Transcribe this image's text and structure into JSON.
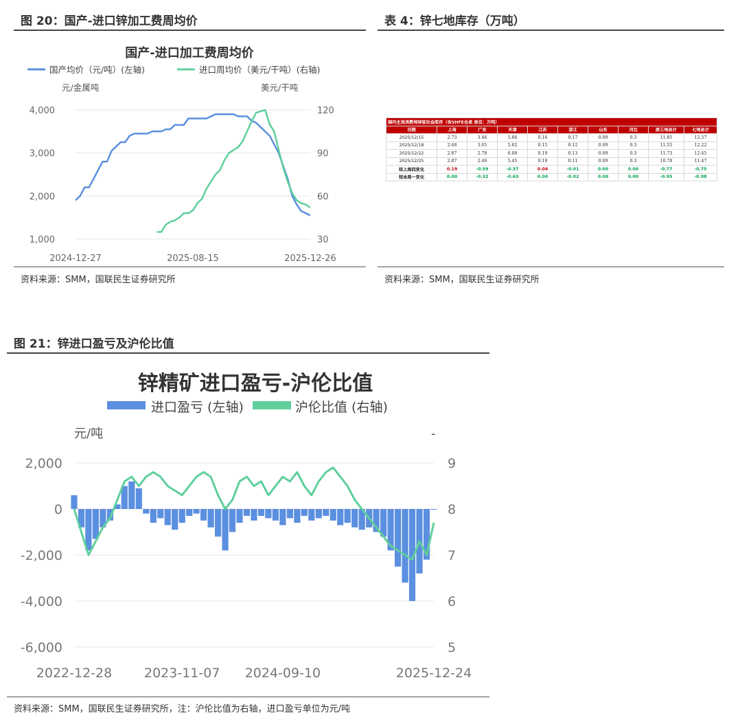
{
  "fig20": {
    "heading": "图 20：国产-进口锌加工费周均价",
    "source": "资料来源：SMM，国联民生证券研究所"
  },
  "tab4": {
    "heading": "表 4：锌七地库存（万吨）",
    "source": "资料来源：SMM，国联民生证券研究所",
    "caption": "国内主流消费地锌锭社会库存（含SHFE仓单 单位：万吨）",
    "columns": [
      "日期",
      "上海",
      "广东",
      "天津",
      "江苏",
      "浙江",
      "山东",
      "河北",
      "原三地总计",
      "七地总计"
    ],
    "rows": [
      [
        "2025/12/15",
        "2.73",
        "3.46",
        "5.66",
        "0.16",
        "0.17",
        "0.09",
        "0.3",
        "11.85",
        "12.57"
      ],
      [
        "2025/12/18",
        "2.68",
        "3.05",
        "5.82",
        "0.15",
        "0.12",
        "0.09",
        "0.3",
        "11.55",
        "12.22"
      ],
      [
        "2025/12/22",
        "2.87",
        "2.78",
        "6.08",
        "0.19",
        "0.13",
        "0.09",
        "0.3",
        "11.73",
        "12.45"
      ],
      [
        "2025/12/25",
        "2.87",
        "2.46",
        "5.45",
        "0.19",
        "0.11",
        "0.09",
        "0.3",
        "10.78",
        "11.47"
      ]
    ],
    "change_rows": [
      [
        "较上周四变化",
        "0.19",
        "-0.59",
        "-0.37",
        "0.04",
        "-0.01",
        "0.00",
        "0.00",
        "-0.77",
        "-0.75"
      ],
      [
        "较本周一变化",
        "0.00",
        "-0.32",
        "-0.63",
        "0.00",
        "-0.02",
        "0.00",
        "0.00",
        "-0.95",
        "-0.98"
      ]
    ]
  },
  "fig21": {
    "heading": "图 21：锌进口盈亏及沪伦比值",
    "source": "资料来源：SMM，国联民生证券研究所，注：沪伦比值为右轴，进口盈亏单位为元/吨"
  },
  "chart_data": [
    {
      "type": "line",
      "title": "国产-进口加工费周均价",
      "left_unit": "元/金属吨",
      "right_unit": "美元/干吨",
      "x_ticks": [
        "2024-12-27",
        "2025-08-15",
        "2025-12-26"
      ],
      "y_left_ticks": [
        "1,000",
        "2,000",
        "3,000",
        "4,000"
      ],
      "y_right_ticks": [
        "30",
        "60",
        "90",
        "120"
      ],
      "ylim_left": [
        1000,
        4000
      ],
      "ylim_right": [
        30,
        120
      ],
      "grid": true,
      "legend": "top",
      "series": [
        {
          "name": "国产均价（元/吨）(左轴)",
          "axis": "left",
          "color": "#5b8fe0",
          "x": [
            0,
            1,
            2,
            3,
            4,
            5,
            6,
            7,
            8,
            9,
            10,
            11,
            12,
            13,
            14,
            15,
            16,
            17,
            18,
            19,
            20,
            21,
            22,
            23,
            24,
            25,
            26,
            27,
            28,
            29,
            30,
            31,
            32,
            33,
            34,
            35,
            36,
            37,
            38,
            39,
            40,
            41,
            42,
            43,
            44,
            45,
            46,
            47,
            48,
            49,
            50,
            51,
            52
          ],
          "values": [
            1900,
            2000,
            2200,
            2200,
            2400,
            2600,
            2800,
            2800,
            3050,
            3150,
            3250,
            3250,
            3400,
            3450,
            3450,
            3450,
            3450,
            3500,
            3500,
            3500,
            3550,
            3550,
            3650,
            3650,
            3650,
            3800,
            3800,
            3800,
            3800,
            3800,
            3850,
            3900,
            3900,
            3900,
            3900,
            3900,
            3850,
            3850,
            3850,
            3750,
            3700,
            3600,
            3500,
            3400,
            3200,
            3000,
            2700,
            2400,
            2000,
            1800,
            1650,
            1600,
            1550
          ]
        },
        {
          "name": "进口周均价（美元/干吨）(右轴)",
          "axis": "right",
          "color": "#5fcf9c",
          "x": [
            18,
            19,
            20,
            21,
            22,
            23,
            24,
            25,
            26,
            27,
            28,
            29,
            30,
            31,
            32,
            33,
            34,
            35,
            36,
            37,
            38,
            39,
            40,
            41,
            42,
            43,
            44,
            45,
            46,
            47,
            48,
            49,
            50,
            51,
            52
          ],
          "values": [
            35,
            35,
            40,
            42,
            43,
            45,
            48,
            48,
            50,
            55,
            58,
            65,
            70,
            75,
            78,
            85,
            90,
            92,
            94,
            98,
            105,
            112,
            118,
            119,
            120,
            110,
            105,
            92,
            80,
            70,
            62,
            57,
            55,
            54,
            52
          ]
        }
      ]
    },
    {
      "type": "bar",
      "title": "锌精矿进口盈亏-沪伦比值",
      "left_unit": "元/吨",
      "right_unit": "-",
      "x_ticks": [
        "2022-12-28",
        "2023-11-07",
        "2024-09-10",
        "2025-12-24"
      ],
      "y_left_ticks": [
        "2,000",
        "0",
        "-2,000",
        "-4,000",
        "-6,000"
      ],
      "y_right_ticks": [
        "9",
        "8",
        "7",
        "6",
        "5"
      ],
      "ylim_left": [
        -6000,
        2000
      ],
      "ylim_right": [
        5,
        9
      ],
      "grid": true,
      "legend": "top",
      "series": [
        {
          "name": "进口盈亏 (左轴)",
          "axis": "left",
          "color": "#5b8fe0",
          "kind": "bar",
          "x": [
            0,
            3,
            6,
            9,
            12,
            15,
            18,
            21,
            24,
            27,
            30,
            33,
            36,
            39,
            42,
            45,
            48,
            51,
            54,
            57,
            60,
            63,
            66,
            69,
            72,
            75,
            78,
            81,
            84,
            87,
            90,
            93,
            96,
            99,
            102,
            105,
            108,
            111,
            114,
            117,
            120,
            123,
            126,
            129,
            132,
            135,
            138,
            141,
            144,
            147,
            150
          ],
          "values": [
            600,
            -800,
            -1800,
            -1300,
            -800,
            -500,
            200,
            1000,
            1200,
            900,
            -200,
            -600,
            -400,
            -700,
            -900,
            -600,
            -300,
            -200,
            -500,
            -800,
            -1200,
            -1800,
            -1000,
            -600,
            -300,
            -500,
            -300,
            -400,
            -500,
            -700,
            -400,
            -600,
            -300,
            -500,
            -400,
            -300,
            -500,
            -700,
            -600,
            -800,
            -900,
            -800,
            -1000,
            -1200,
            -1800,
            -2500,
            -3200,
            -4000,
            -2800,
            -2200,
            0
          ]
        },
        {
          "name": "沪伦比值 (右轴)",
          "axis": "right",
          "color": "#5fcf9c",
          "kind": "line",
          "x": [
            0,
            3,
            6,
            9,
            12,
            15,
            18,
            21,
            24,
            27,
            30,
            33,
            36,
            39,
            42,
            45,
            48,
            51,
            54,
            57,
            60,
            63,
            66,
            69,
            72,
            75,
            78,
            81,
            84,
            87,
            90,
            93,
            96,
            99,
            102,
            105,
            108,
            111,
            114,
            117,
            120,
            123,
            126,
            129,
            132,
            135,
            138,
            141,
            144,
            147,
            150
          ],
          "values": [
            8.0,
            7.5,
            7.0,
            7.3,
            7.6,
            7.8,
            8.2,
            8.6,
            8.7,
            8.5,
            8.7,
            8.8,
            8.7,
            8.5,
            8.4,
            8.3,
            8.5,
            8.7,
            8.8,
            8.7,
            8.3,
            8.0,
            8.2,
            8.6,
            8.7,
            8.5,
            8.6,
            8.3,
            8.5,
            8.7,
            8.6,
            8.8,
            8.5,
            8.3,
            8.6,
            8.8,
            8.9,
            8.7,
            8.5,
            8.2,
            8.0,
            7.8,
            7.6,
            7.4,
            7.2,
            7.1,
            7.0,
            6.9,
            7.3,
            7.0,
            7.7
          ]
        }
      ]
    }
  ]
}
